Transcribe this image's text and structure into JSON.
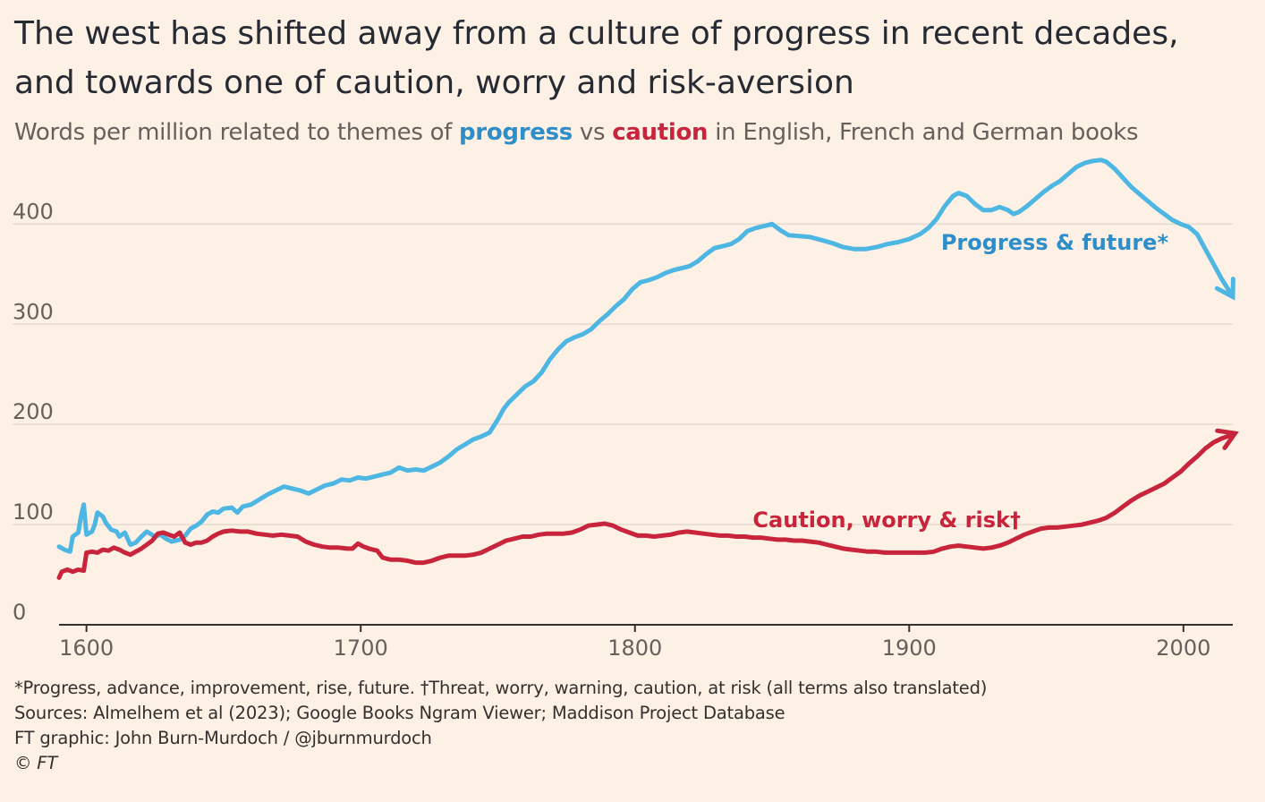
{
  "title_line1": "The west has shifted away from a culture of progress in recent decades,",
  "title_line2": "and towards one of caution, worry and risk-aversion",
  "subtitle": {
    "pre": "Words per million related to themes of ",
    "progress": "progress",
    "mid": " vs ",
    "caution": "caution",
    "post": " in English, French and German books"
  },
  "footer": {
    "note": "*Progress, advance, improvement, rise, future. †Threat, worry, warning, caution, at risk (all terms also translated)",
    "sources": "Sources: Almelhem et al (2023); Google Books Ngram Viewer; Maddison Project Database",
    "credit": "FT graphic: John Burn-Murdoch / @jburnmurdoch",
    "copyright": "© FT"
  },
  "colors": {
    "progress": "#4db6e3",
    "progress_label": "#2e8ec9",
    "caution": "#c8253c",
    "grid": "#e6d9ce",
    "axis": "#33302e",
    "background": "#fdf1e5"
  },
  "chart_data": {
    "type": "line",
    "title": "The west has shifted away from a culture of progress in recent decades, and towards one of caution, worry and risk-aversion",
    "xlabel": "",
    "ylabel": "",
    "xlim": [
      1590,
      2018
    ],
    "ylim": [
      0,
      470
    ],
    "y_ticks": [
      0,
      100,
      200,
      300,
      400
    ],
    "x_ticks": [
      1600,
      1700,
      1800,
      1900,
      2000
    ],
    "grid": true,
    "legend": "inline labels",
    "series": [
      {
        "name": "progress",
        "label": "Progress & future*",
        "points": [
          [
            1590,
            78
          ],
          [
            1592,
            75
          ],
          [
            1594,
            73
          ],
          [
            1595,
            88
          ],
          [
            1597,
            92
          ],
          [
            1598,
            108
          ],
          [
            1599,
            120
          ],
          [
            1600,
            90
          ],
          [
            1602,
            93
          ],
          [
            1603,
            100
          ],
          [
            1604,
            112
          ],
          [
            1606,
            108
          ],
          [
            1607,
            102
          ],
          [
            1609,
            95
          ],
          [
            1611,
            93
          ],
          [
            1612,
            88
          ],
          [
            1614,
            92
          ],
          [
            1616,
            80
          ],
          [
            1618,
            82
          ],
          [
            1620,
            88
          ],
          [
            1622,
            93
          ],
          [
            1625,
            88
          ],
          [
            1627,
            90
          ],
          [
            1629,
            86
          ],
          [
            1631,
            83
          ],
          [
            1634,
            85
          ],
          [
            1636,
            89
          ],
          [
            1638,
            96
          ],
          [
            1640,
            99
          ],
          [
            1642,
            103
          ],
          [
            1644,
            110
          ],
          [
            1646,
            113
          ],
          [
            1648,
            112
          ],
          [
            1650,
            116
          ],
          [
            1653,
            117
          ],
          [
            1655,
            112
          ],
          [
            1657,
            118
          ],
          [
            1660,
            120
          ],
          [
            1663,
            125
          ],
          [
            1666,
            130
          ],
          [
            1669,
            134
          ],
          [
            1672,
            138
          ],
          [
            1675,
            136
          ],
          [
            1678,
            134
          ],
          [
            1681,
            131
          ],
          [
            1684,
            135
          ],
          [
            1687,
            139
          ],
          [
            1690,
            141
          ],
          [
            1693,
            145
          ],
          [
            1696,
            144
          ],
          [
            1699,
            147
          ],
          [
            1702,
            146
          ],
          [
            1705,
            148
          ],
          [
            1708,
            150
          ],
          [
            1711,
            152
          ],
          [
            1714,
            157
          ],
          [
            1717,
            154
          ],
          [
            1720,
            155
          ],
          [
            1723,
            154
          ],
          [
            1726,
            158
          ],
          [
            1729,
            162
          ],
          [
            1732,
            168
          ],
          [
            1735,
            175
          ],
          [
            1738,
            180
          ],
          [
            1741,
            185
          ],
          [
            1744,
            188
          ],
          [
            1747,
            192
          ],
          [
            1750,
            205
          ],
          [
            1752,
            215
          ],
          [
            1754,
            222
          ],
          [
            1757,
            230
          ],
          [
            1760,
            238
          ],
          [
            1763,
            243
          ],
          [
            1766,
            252
          ],
          [
            1769,
            265
          ],
          [
            1772,
            275
          ],
          [
            1775,
            283
          ],
          [
            1778,
            287
          ],
          [
            1781,
            290
          ],
          [
            1784,
            295
          ],
          [
            1787,
            303
          ],
          [
            1790,
            310
          ],
          [
            1793,
            318
          ],
          [
            1796,
            325
          ],
          [
            1799,
            335
          ],
          [
            1802,
            342
          ],
          [
            1805,
            344
          ],
          [
            1808,
            347
          ],
          [
            1811,
            351
          ],
          [
            1814,
            354
          ],
          [
            1817,
            356
          ],
          [
            1820,
            358
          ],
          [
            1823,
            363
          ],
          [
            1826,
            370
          ],
          [
            1829,
            376
          ],
          [
            1832,
            378
          ],
          [
            1835,
            380
          ],
          [
            1838,
            385
          ],
          [
            1841,
            393
          ],
          [
            1844,
            396
          ],
          [
            1847,
            398
          ],
          [
            1850,
            400
          ],
          [
            1853,
            394
          ],
          [
            1856,
            389
          ],
          [
            1860,
            388
          ],
          [
            1864,
            387
          ],
          [
            1868,
            384
          ],
          [
            1872,
            381
          ],
          [
            1876,
            377
          ],
          [
            1880,
            375
          ],
          [
            1884,
            375
          ],
          [
            1888,
            377
          ],
          [
            1892,
            380
          ],
          [
            1896,
            382
          ],
          [
            1900,
            385
          ],
          [
            1904,
            390
          ],
          [
            1907,
            396
          ],
          [
            1910,
            405
          ],
          [
            1913,
            418
          ],
          [
            1916,
            428
          ],
          [
            1918,
            431
          ],
          [
            1921,
            428
          ],
          [
            1924,
            420
          ],
          [
            1927,
            414
          ],
          [
            1930,
            414
          ],
          [
            1933,
            417
          ],
          [
            1936,
            414
          ],
          [
            1938,
            410
          ],
          [
            1940,
            412
          ],
          [
            1943,
            418
          ],
          [
            1946,
            425
          ],
          [
            1949,
            432
          ],
          [
            1952,
            438
          ],
          [
            1955,
            443
          ],
          [
            1958,
            450
          ],
          [
            1961,
            457
          ],
          [
            1964,
            461
          ],
          [
            1967,
            463
          ],
          [
            1970,
            464
          ],
          [
            1972,
            462
          ],
          [
            1975,
            455
          ],
          [
            1978,
            446
          ],
          [
            1981,
            437
          ],
          [
            1984,
            430
          ],
          [
            1987,
            423
          ],
          [
            1990,
            416
          ],
          [
            1993,
            410
          ],
          [
            1996,
            404
          ],
          [
            1999,
            400
          ],
          [
            2002,
            397
          ],
          [
            2005,
            390
          ],
          [
            2008,
            375
          ],
          [
            2011,
            360
          ],
          [
            2014,
            345
          ],
          [
            2017,
            332
          ]
        ]
      },
      {
        "name": "caution",
        "label": "Caution, worry & risk†",
        "points": [
          [
            1590,
            47
          ],
          [
            1591,
            53
          ],
          [
            1593,
            55
          ],
          [
            1595,
            53
          ],
          [
            1597,
            55
          ],
          [
            1599,
            54
          ],
          [
            1600,
            72
          ],
          [
            1602,
            73
          ],
          [
            1604,
            72
          ],
          [
            1606,
            75
          ],
          [
            1608,
            74
          ],
          [
            1610,
            77
          ],
          [
            1612,
            75
          ],
          [
            1614,
            72
          ],
          [
            1616,
            70
          ],
          [
            1618,
            73
          ],
          [
            1620,
            76
          ],
          [
            1622,
            80
          ],
          [
            1624,
            84
          ],
          [
            1626,
            91
          ],
          [
            1628,
            92
          ],
          [
            1630,
            90
          ],
          [
            1632,
            88
          ],
          [
            1634,
            92
          ],
          [
            1636,
            82
          ],
          [
            1638,
            80
          ],
          [
            1640,
            82
          ],
          [
            1642,
            82
          ],
          [
            1644,
            84
          ],
          [
            1646,
            88
          ],
          [
            1648,
            91
          ],
          [
            1650,
            93
          ],
          [
            1653,
            94
          ],
          [
            1656,
            93
          ],
          [
            1659,
            93
          ],
          [
            1662,
            91
          ],
          [
            1665,
            90
          ],
          [
            1668,
            89
          ],
          [
            1671,
            90
          ],
          [
            1674,
            89
          ],
          [
            1677,
            88
          ],
          [
            1680,
            83
          ],
          [
            1683,
            80
          ],
          [
            1686,
            78
          ],
          [
            1689,
            77
          ],
          [
            1692,
            77
          ],
          [
            1695,
            76
          ],
          [
            1697,
            76
          ],
          [
            1699,
            81
          ],
          [
            1701,
            78
          ],
          [
            1703,
            76
          ],
          [
            1706,
            74
          ],
          [
            1708,
            67
          ],
          [
            1711,
            65
          ],
          [
            1714,
            65
          ],
          [
            1717,
            64
          ],
          [
            1720,
            62
          ],
          [
            1723,
            62
          ],
          [
            1726,
            64
          ],
          [
            1729,
            67
          ],
          [
            1732,
            69
          ],
          [
            1735,
            69
          ],
          [
            1738,
            69
          ],
          [
            1741,
            70
          ],
          [
            1744,
            72
          ],
          [
            1747,
            76
          ],
          [
            1750,
            80
          ],
          [
            1753,
            84
          ],
          [
            1756,
            86
          ],
          [
            1759,
            88
          ],
          [
            1762,
            88
          ],
          [
            1765,
            90
          ],
          [
            1768,
            91
          ],
          [
            1771,
            91
          ],
          [
            1774,
            91
          ],
          [
            1777,
            92
          ],
          [
            1780,
            95
          ],
          [
            1783,
            99
          ],
          [
            1786,
            100
          ],
          [
            1789,
            101
          ],
          [
            1792,
            99
          ],
          [
            1795,
            95
          ],
          [
            1798,
            92
          ],
          [
            1801,
            89
          ],
          [
            1804,
            89
          ],
          [
            1807,
            88
          ],
          [
            1810,
            89
          ],
          [
            1813,
            90
          ],
          [
            1816,
            92
          ],
          [
            1819,
            93
          ],
          [
            1822,
            92
          ],
          [
            1825,
            91
          ],
          [
            1828,
            90
          ],
          [
            1831,
            89
          ],
          [
            1834,
            89
          ],
          [
            1837,
            88
          ],
          [
            1840,
            88
          ],
          [
            1843,
            87
          ],
          [
            1846,
            87
          ],
          [
            1849,
            86
          ],
          [
            1852,
            85
          ],
          [
            1855,
            85
          ],
          [
            1858,
            84
          ],
          [
            1861,
            84
          ],
          [
            1864,
            83
          ],
          [
            1867,
            82
          ],
          [
            1870,
            80
          ],
          [
            1873,
            78
          ],
          [
            1876,
            76
          ],
          [
            1879,
            75
          ],
          [
            1882,
            74
          ],
          [
            1885,
            73
          ],
          [
            1888,
            73
          ],
          [
            1891,
            72
          ],
          [
            1894,
            72
          ],
          [
            1897,
            72
          ],
          [
            1900,
            72
          ],
          [
            1903,
            72
          ],
          [
            1906,
            72
          ],
          [
            1909,
            73
          ],
          [
            1912,
            76
          ],
          [
            1915,
            78
          ],
          [
            1918,
            79
          ],
          [
            1921,
            78
          ],
          [
            1924,
            77
          ],
          [
            1927,
            76
          ],
          [
            1930,
            77
          ],
          [
            1933,
            79
          ],
          [
            1936,
            82
          ],
          [
            1939,
            86
          ],
          [
            1942,
            90
          ],
          [
            1945,
            93
          ],
          [
            1948,
            96
          ],
          [
            1951,
            97
          ],
          [
            1954,
            97
          ],
          [
            1957,
            98
          ],
          [
            1960,
            99
          ],
          [
            1963,
            100
          ],
          [
            1966,
            102
          ],
          [
            1969,
            104
          ],
          [
            1972,
            107
          ],
          [
            1975,
            112
          ],
          [
            1978,
            118
          ],
          [
            1981,
            124
          ],
          [
            1984,
            129
          ],
          [
            1987,
            133
          ],
          [
            1990,
            137
          ],
          [
            1993,
            141
          ],
          [
            1996,
            147
          ],
          [
            1999,
            153
          ],
          [
            2002,
            161
          ],
          [
            2005,
            168
          ],
          [
            2008,
            176
          ],
          [
            2011,
            182
          ],
          [
            2014,
            186
          ],
          [
            2017,
            189
          ]
        ]
      }
    ]
  }
}
